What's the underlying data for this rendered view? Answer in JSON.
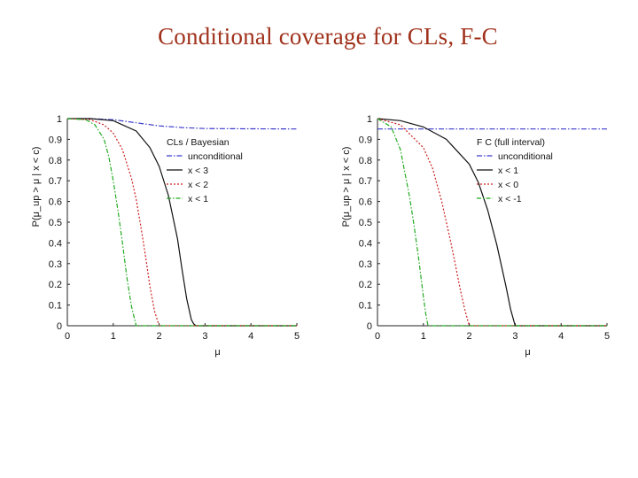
{
  "slide": {
    "title": "Conditional coverage for CLs, F-C"
  },
  "chart_data": [
    {
      "type": "line",
      "panel": "left",
      "ylabel": "P(μ_up > μ | x < c)",
      "xlabel": "μ",
      "xlim": [
        0,
        5
      ],
      "ylim": [
        0,
        1
      ],
      "xticks": [
        "0",
        "1",
        "2",
        "3",
        "4",
        "5"
      ],
      "yticks": [
        "0",
        "0.1",
        "0.2",
        "0.3",
        "0.4",
        "0.5",
        "0.6",
        "0.7",
        "0.8",
        "0.9",
        "1"
      ],
      "legend_title": "CLs / Bayesian",
      "legend_position": "right",
      "series": [
        {
          "name": "unconditional",
          "color": "#3a3acc",
          "dash": "6,2,1.5,2",
          "x": [
            0,
            0.5,
            1,
            1.5,
            2,
            2.5,
            3,
            4,
            5
          ],
          "y": [
            1,
            1,
            0.995,
            0.98,
            0.965,
            0.957,
            0.952,
            0.951,
            0.95
          ]
        },
        {
          "name": "x < 3",
          "color": "#111111",
          "dash": "",
          "x": [
            0,
            0.5,
            1,
            1.5,
            1.8,
            2.0,
            2.2,
            2.4,
            2.5,
            2.6,
            2.7,
            2.75,
            2.8,
            5
          ],
          "y": [
            1,
            1,
            0.99,
            0.94,
            0.86,
            0.77,
            0.63,
            0.42,
            0.27,
            0.13,
            0.03,
            0.01,
            0,
            0
          ]
        },
        {
          "name": "x < 2",
          "color": "#cc2020",
          "dash": "2,2",
          "x": [
            0,
            0.5,
            0.8,
            1.0,
            1.2,
            1.4,
            1.5,
            1.6,
            1.7,
            1.8,
            1.9,
            2.0,
            5
          ],
          "y": [
            1,
            0.995,
            0.97,
            0.93,
            0.85,
            0.71,
            0.61,
            0.48,
            0.34,
            0.19,
            0.07,
            0,
            0
          ]
        },
        {
          "name": "x < 1",
          "color": "#22aa22",
          "dash": "5,2,1.5,2",
          "x": [
            0,
            0.4,
            0.6,
            0.8,
            0.9,
            1.0,
            1.1,
            1.2,
            1.3,
            1.4,
            1.5,
            5
          ],
          "y": [
            1,
            0.995,
            0.97,
            0.9,
            0.82,
            0.7,
            0.56,
            0.4,
            0.23,
            0.09,
            0,
            0
          ]
        }
      ]
    },
    {
      "type": "line",
      "panel": "right",
      "ylabel": "P(μ_up > μ | x < c)",
      "xlabel": "μ",
      "xlim": [
        0,
        5
      ],
      "ylim": [
        0,
        1
      ],
      "xticks": [
        "0",
        "1",
        "2",
        "3",
        "4",
        "5"
      ],
      "yticks": [
        "0",
        "0.1",
        "0.2",
        "0.3",
        "0.4",
        "0.5",
        "0.6",
        "0.7",
        "0.8",
        "0.9",
        "1"
      ],
      "legend_title": "F C (full interval)",
      "legend_position": "right",
      "series": [
        {
          "name": "unconditional",
          "color": "#3a3acc",
          "dash": "6,2,1.5,2",
          "x": [
            0,
            5
          ],
          "y": [
            0.95,
            0.95
          ]
        },
        {
          "name": "x < 1",
          "color": "#111111",
          "dash": "",
          "x": [
            0,
            0.5,
            1.0,
            1.5,
            2.0,
            2.2,
            2.4,
            2.6,
            2.8,
            2.9,
            3.0,
            5
          ],
          "y": [
            1,
            0.99,
            0.96,
            0.9,
            0.78,
            0.69,
            0.56,
            0.39,
            0.19,
            0.08,
            0,
            0
          ]
        },
        {
          "name": "x < 0",
          "color": "#cc2020",
          "dash": "2,2",
          "x": [
            0,
            0.5,
            1.0,
            1.2,
            1.4,
            1.6,
            1.7,
            1.8,
            1.9,
            2.0,
            5
          ],
          "y": [
            1,
            0.97,
            0.86,
            0.76,
            0.6,
            0.4,
            0.29,
            0.18,
            0.08,
            0,
            0
          ]
        },
        {
          "name": "x < -1",
          "color": "#22aa22",
          "dash": "5,2,1.5,2",
          "x": [
            0,
            0.3,
            0.5,
            0.7,
            0.8,
            0.9,
            1.0,
            1.05,
            1.1,
            5
          ],
          "y": [
            1,
            0.96,
            0.85,
            0.62,
            0.48,
            0.32,
            0.14,
            0.06,
            0,
            0
          ]
        }
      ]
    }
  ]
}
